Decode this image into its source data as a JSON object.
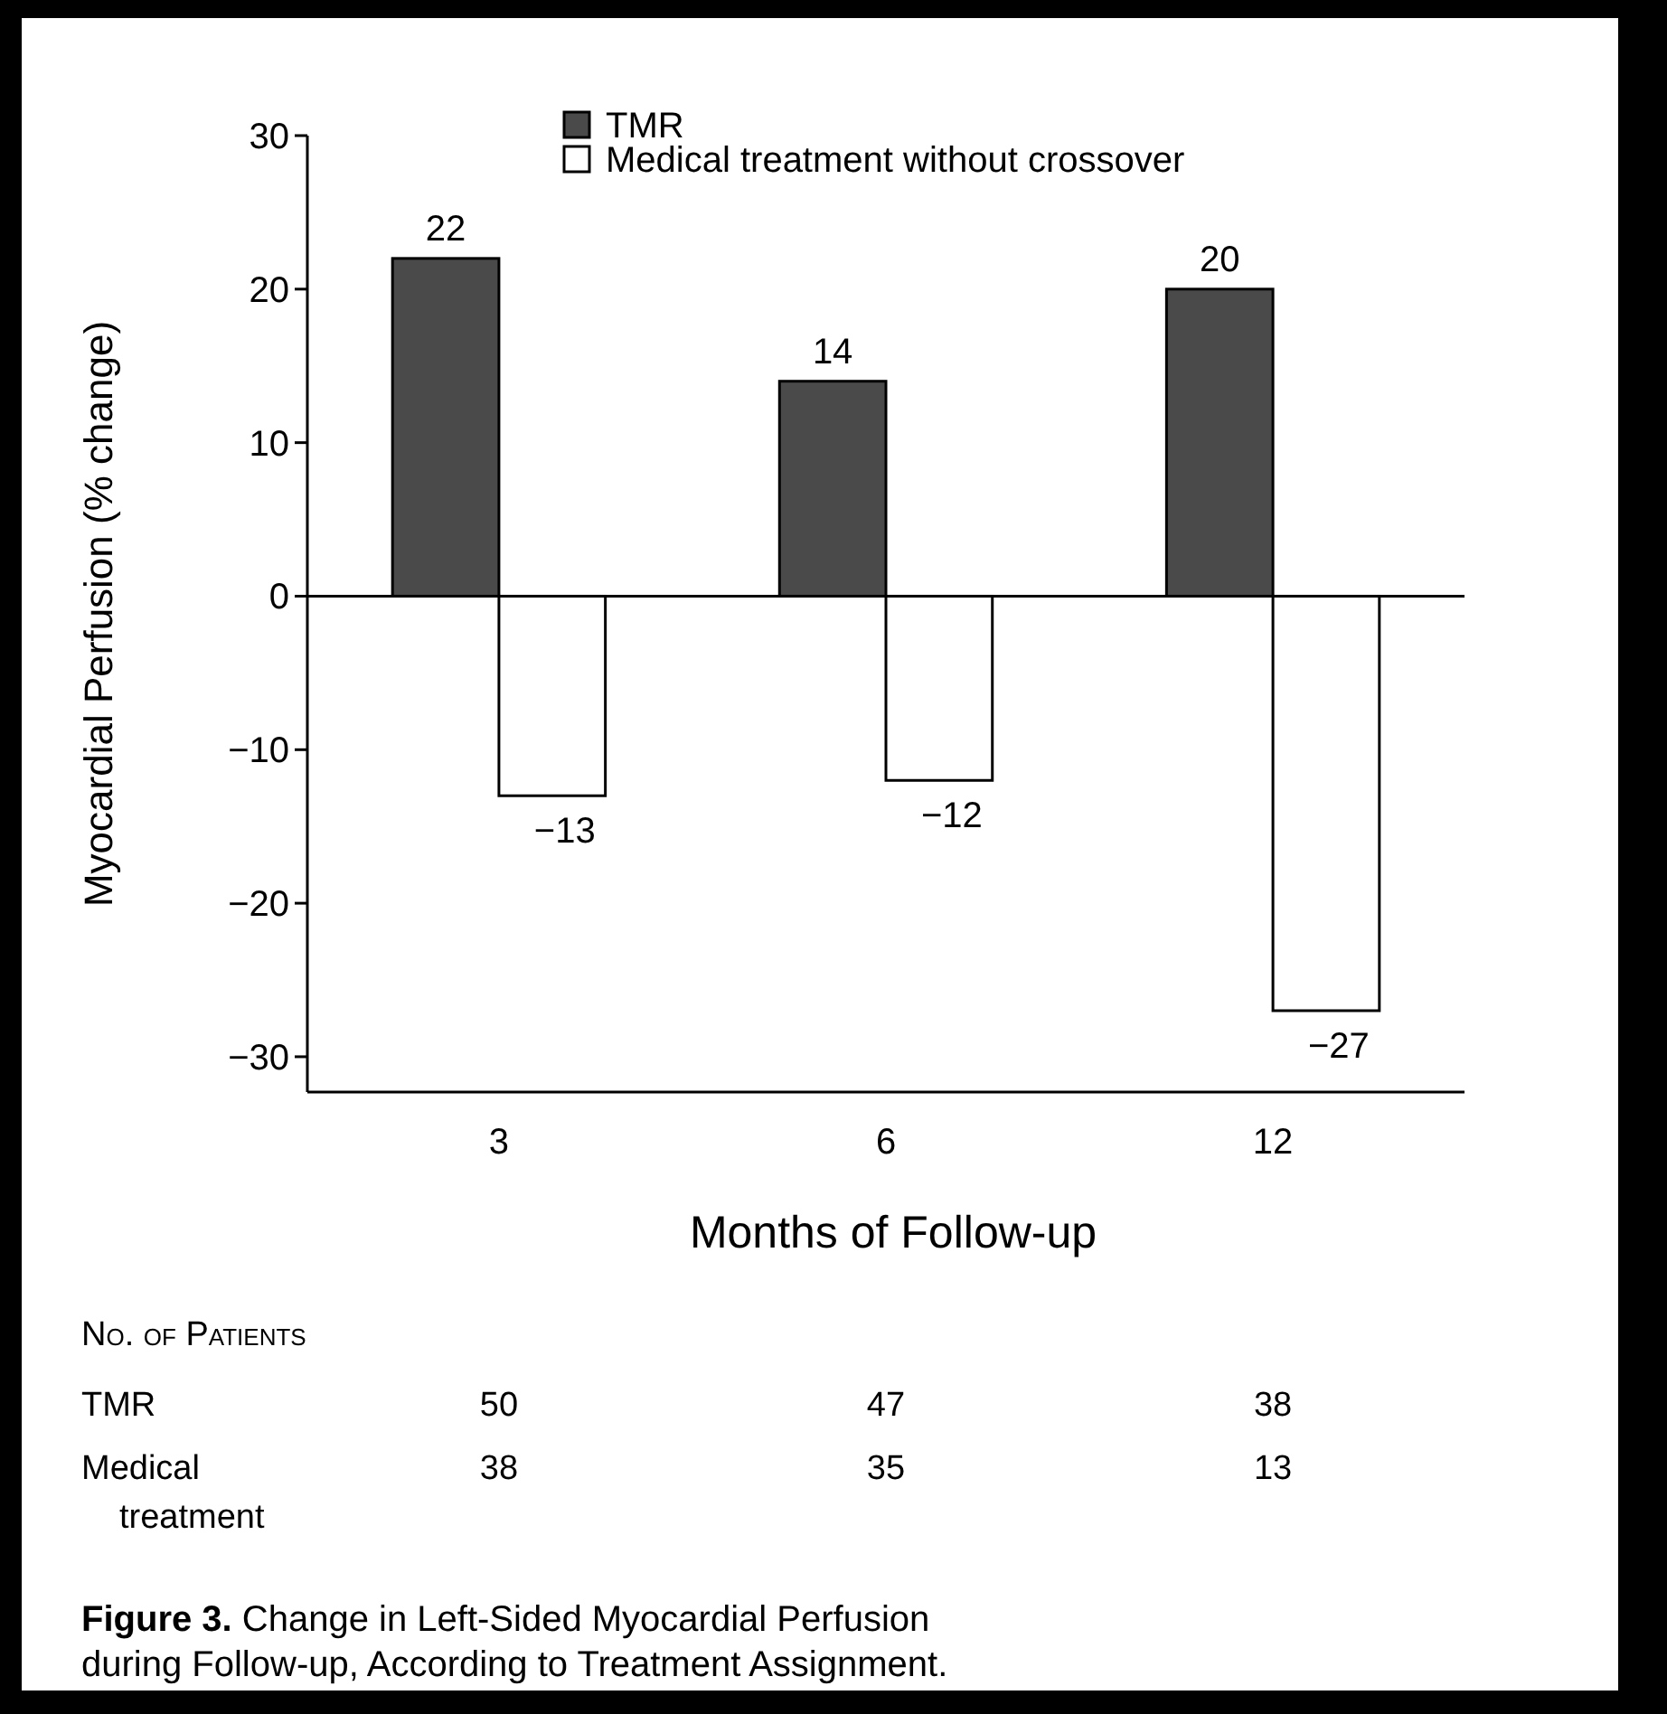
{
  "chart_data": {
    "type": "bar",
    "ylabel": "Myocardial Perfusion (% change)",
    "xlabel": "Months of Follow-up",
    "categories": [
      "3",
      "6",
      "12"
    ],
    "series": [
      {
        "name": "TMR",
        "color": "#4a4a4a",
        "values": [
          22,
          14,
          20
        ]
      },
      {
        "name": "Medical treatment without crossover",
        "color": "#ffffff",
        "values": [
          -13,
          -12,
          -27
        ]
      }
    ],
    "ylim": [
      -32.3,
      30
    ],
    "yticks": [
      {
        "value": -30,
        "label": "−30"
      },
      {
        "value": -20,
        "label": "−20"
      },
      {
        "value": -10,
        "label": "−10"
      },
      0,
      10,
      20,
      30
    ],
    "data_labels": true,
    "legend": "top",
    "annotations": [
      "No. of Patients",
      "TMR",
      "50",
      "47",
      "38",
      "Medical treatment",
      "38",
      "35",
      "13",
      "Figure 3. Change in Left-Sided Myocardial Perfusion during Follow-up, According to Treatment Assignment."
    ]
  }
}
